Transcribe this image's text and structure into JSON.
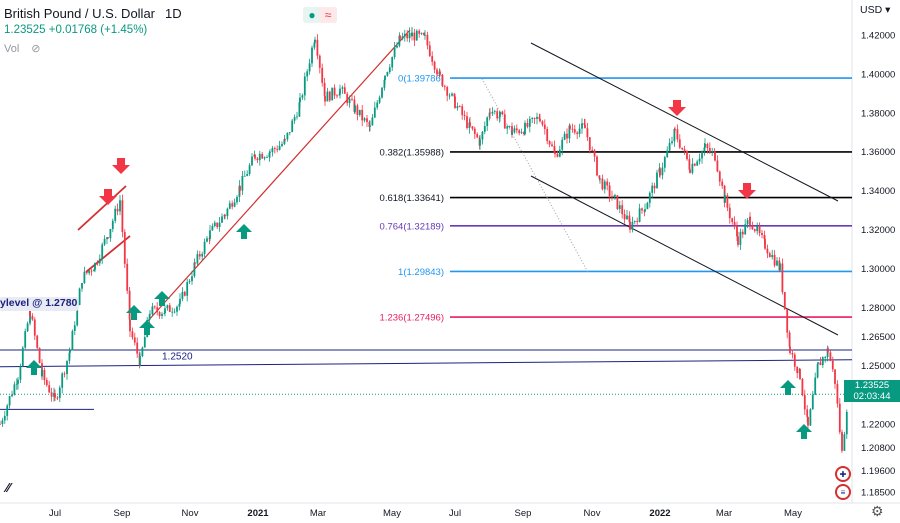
{
  "header": {
    "symbol": "British Pound / U.S. Dollar",
    "timeframe": "1D",
    "price": "1.23525",
    "change": "+0.01768 (+1.45%)",
    "vol_label": "Vol",
    "currency": "USD"
  },
  "current_price_tag": {
    "price": "1.23525",
    "countdown": "02:03:44"
  },
  "support_tag": "ylevel @ 1.2780",
  "chart_data": {
    "type": "candlestick",
    "title": "British Pound / U.S. Dollar",
    "ylim": [
      1.175,
      1.43
    ],
    "y_ticks": [
      "1.42000",
      "1.40000",
      "1.38000",
      "1.36000",
      "1.34000",
      "1.32000",
      "1.30000",
      "1.28000",
      "1.26500",
      "1.25000",
      "1.23525",
      "1.22000",
      "1.20800",
      "1.19600",
      "1.18500"
    ],
    "x_ticks": [
      "Jul",
      "Sep",
      "Nov",
      "2021",
      "Mar",
      "May",
      "Jul",
      "Sep",
      "Nov",
      "2022",
      "Mar",
      "May"
    ],
    "fib_levels": [
      {
        "label": "0(1.39786)",
        "value": 1.39786,
        "color": "#2196f3"
      },
      {
        "label": "0.382(1.35988)",
        "value": 1.35988,
        "color": "#000000"
      },
      {
        "label": "0.618(1.33641)",
        "value": 1.33641,
        "color": "#000000"
      },
      {
        "label": "0.764(1.32189)",
        "value": 1.32189,
        "color": "#673ab7"
      },
      {
        "label": "1(1.29843)",
        "value": 1.29843,
        "color": "#2196f3"
      },
      {
        "label": "1.236(1.27496)",
        "value": 1.27496,
        "color": "#e91e63"
      }
    ],
    "horizontal_lines": [
      {
        "label": "1.2520",
        "value": 1.252,
        "color": "#1a237e"
      }
    ],
    "last_price": 1.23525,
    "path_points": [
      [
        0,
        1.22
      ],
      [
        18,
        1.245
      ],
      [
        30,
        1.278
      ],
      [
        42,
        1.245
      ],
      [
        55,
        1.232
      ],
      [
        70,
        1.258
      ],
      [
        82,
        1.295
      ],
      [
        95,
        1.302
      ],
      [
        108,
        1.318
      ],
      [
        120,
        1.335
      ],
      [
        130,
        1.268
      ],
      [
        140,
        1.252
      ],
      [
        150,
        1.278
      ],
      [
        165,
        1.278
      ],
      [
        180,
        1.282
      ],
      [
        195,
        1.302
      ],
      [
        210,
        1.318
      ],
      [
        225,
        1.328
      ],
      [
        240,
        1.342
      ],
      [
        255,
        1.358
      ],
      [
        270,
        1.36
      ],
      [
        285,
        1.365
      ],
      [
        300,
        1.385
      ],
      [
        315,
        1.42
      ],
      [
        325,
        1.388
      ],
      [
        340,
        1.392
      ],
      [
        355,
        1.382
      ],
      [
        370,
        1.372
      ],
      [
        385,
        1.4
      ],
      [
        400,
        1.418
      ],
      [
        412,
        1.42
      ],
      [
        425,
        1.418
      ],
      [
        440,
        1.398
      ],
      [
        455,
        1.385
      ],
      [
        470,
        1.372
      ],
      [
        480,
        1.365
      ],
      [
        490,
        1.382
      ],
      [
        500,
        1.378
      ],
      [
        512,
        1.37
      ],
      [
        525,
        1.372
      ],
      [
        540,
        1.378
      ],
      [
        555,
        1.358
      ],
      [
        570,
        1.372
      ],
      [
        585,
        1.372
      ],
      [
        600,
        1.345
      ],
      [
        615,
        1.335
      ],
      [
        630,
        1.322
      ],
      [
        645,
        1.332
      ],
      [
        660,
        1.35
      ],
      [
        675,
        1.37
      ],
      [
        690,
        1.352
      ],
      [
        705,
        1.362
      ],
      [
        715,
        1.358
      ],
      [
        725,
        1.335
      ],
      [
        738,
        1.315
      ],
      [
        750,
        1.325
      ],
      [
        765,
        1.312
      ],
      [
        780,
        1.3
      ],
      [
        790,
        1.258
      ],
      [
        800,
        1.245
      ],
      [
        808,
        1.218
      ],
      [
        818,
        1.25
      ],
      [
        828,
        1.258
      ],
      [
        835,
        1.242
      ],
      [
        842,
        1.205
      ],
      [
        848,
        1.235
      ]
    ]
  },
  "x_axis": [
    "Jul",
    "Sep",
    "Nov",
    "2021",
    "Mar",
    "May",
    "Jul",
    "Sep",
    "Nov",
    "2022",
    "Mar",
    "May"
  ],
  "icons": [
    "eye-off-icon",
    "gear-icon",
    "flag-uk-icon",
    "flag-us-icon"
  ]
}
